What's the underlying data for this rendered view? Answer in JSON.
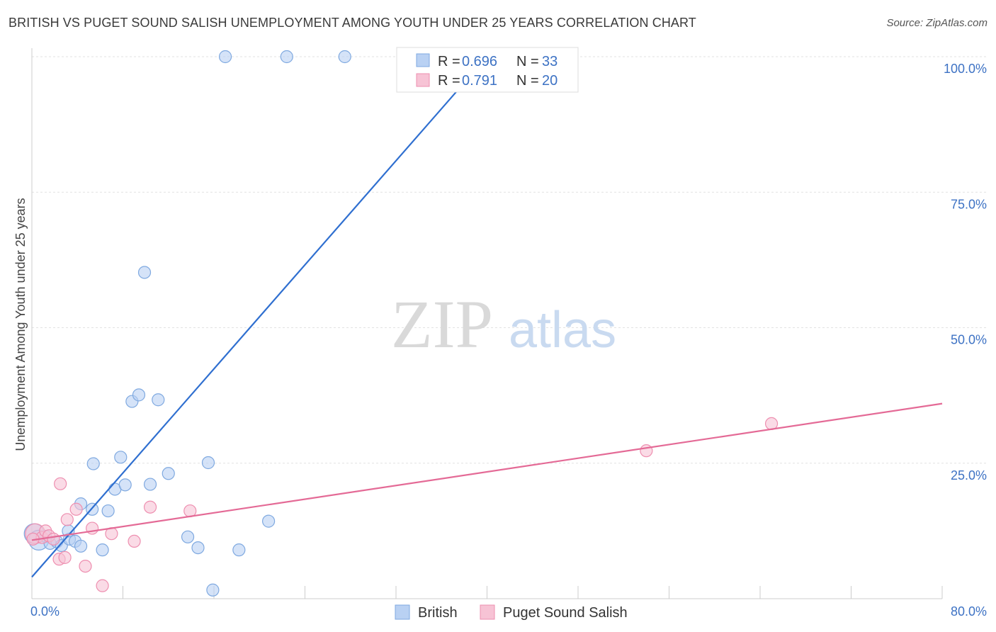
{
  "title": "BRITISH VS PUGET SOUND SALISH UNEMPLOYMENT AMONG YOUTH UNDER 25 YEARS CORRELATION CHART",
  "source": "Source: ZipAtlas.com",
  "watermark": {
    "zip": "ZIP",
    "atlas": "atlas"
  },
  "colors": {
    "british": "#7fa9e0",
    "british_fill": "#b9d1f3",
    "salish": "#ee8fb0",
    "salish_fill": "#f7c3d5",
    "british_line": "#2f6fd0",
    "salish_line": "#e46a96",
    "grid": "#e2e2e2"
  },
  "legend": {
    "rows": [
      {
        "r_label": "R =",
        "r_value": "0.696",
        "n_label": "N =",
        "n_value": "33"
      },
      {
        "r_label": "R =",
        "r_value": "0.791",
        "n_label": "N =",
        "n_value": "20"
      }
    ]
  },
  "chart_data": {
    "type": "scatter",
    "title": "BRITISH VS PUGET SOUND SALISH UNEMPLOYMENT AMONG YOUTH UNDER 25 YEARS CORRELATION CHART",
    "xlabel": "",
    "ylabel": "Unemployment Among Youth under 25 years",
    "xlim": [
      0,
      80
    ],
    "ylim": [
      0,
      100
    ],
    "x_tick_labels": [
      "0.0%",
      "80.0%"
    ],
    "y_tick_values": [
      25,
      50,
      75,
      100
    ],
    "y_tick_labels": [
      "25.0%",
      "50.0%",
      "75.0%",
      "100.0%"
    ],
    "grid": true,
    "legend_position": "bottom-center",
    "series": [
      {
        "name": "British",
        "points": [
          {
            "x": 0.2,
            "y": 12.0,
            "s": "large"
          },
          {
            "x": 0.6,
            "y": 10.8,
            "s": "large"
          },
          {
            "x": 1.2,
            "y": 11.5
          },
          {
            "x": 1.6,
            "y": 10.2
          },
          {
            "x": 2.2,
            "y": 10.5
          },
          {
            "x": 2.6,
            "y": 9.8
          },
          {
            "x": 3.3,
            "y": 11.0
          },
          {
            "x": 3.2,
            "y": 12.5
          },
          {
            "x": 4.3,
            "y": 17.5
          },
          {
            "x": 3.8,
            "y": 10.6
          },
          {
            "x": 4.3,
            "y": 9.7
          },
          {
            "x": 5.3,
            "y": 16.5
          },
          {
            "x": 5.4,
            "y": 24.9
          },
          {
            "x": 6.2,
            "y": 9.0
          },
          {
            "x": 6.7,
            "y": 16.2
          },
          {
            "x": 7.3,
            "y": 20.2
          },
          {
            "x": 7.8,
            "y": 26.1
          },
          {
            "x": 8.2,
            "y": 21.0
          },
          {
            "x": 8.8,
            "y": 36.4
          },
          {
            "x": 9.4,
            "y": 37.6
          },
          {
            "x": 9.9,
            "y": 60.2
          },
          {
            "x": 10.4,
            "y": 21.1
          },
          {
            "x": 11.1,
            "y": 36.7
          },
          {
            "x": 12.0,
            "y": 23.1
          },
          {
            "x": 13.7,
            "y": 11.4
          },
          {
            "x": 14.6,
            "y": 9.4
          },
          {
            "x": 15.5,
            "y": 25.1
          },
          {
            "x": 15.9,
            "y": 1.6
          },
          {
            "x": 17.0,
            "y": 100.0
          },
          {
            "x": 18.2,
            "y": 9.0
          },
          {
            "x": 20.8,
            "y": 14.3
          },
          {
            "x": 22.4,
            "y": 100.0
          },
          {
            "x": 27.5,
            "y": 100.0
          }
        ]
      },
      {
        "name": "Puget Sound Salish",
        "points": [
          {
            "x": 0.3,
            "y": 12.0,
            "s": "large"
          },
          {
            "x": 0.9,
            "y": 11.3
          },
          {
            "x": 1.2,
            "y": 12.5
          },
          {
            "x": 1.5,
            "y": 11.6
          },
          {
            "x": 1.9,
            "y": 11.0
          },
          {
            "x": 2.4,
            "y": 7.3
          },
          {
            "x": 2.5,
            "y": 21.2
          },
          {
            "x": 2.9,
            "y": 7.6
          },
          {
            "x": 3.1,
            "y": 14.6
          },
          {
            "x": 3.9,
            "y": 16.5
          },
          {
            "x": 4.7,
            "y": 6.0
          },
          {
            "x": 5.3,
            "y": 13.0
          },
          {
            "x": 6.2,
            "y": 2.4
          },
          {
            "x": 7.0,
            "y": 12.0
          },
          {
            "x": 9.0,
            "y": 10.6
          },
          {
            "x": 10.4,
            "y": 16.9
          },
          {
            "x": 13.9,
            "y": 16.2
          },
          {
            "x": 54.0,
            "y": 27.3
          },
          {
            "x": 65.0,
            "y": 32.3
          },
          {
            "x": 0.1,
            "y": 11.0
          }
        ]
      }
    ],
    "trend_lines": [
      {
        "name": "British",
        "from": {
          "x": 0,
          "y": 4.0
        },
        "to": {
          "x": 40,
          "y": 100.0
        }
      },
      {
        "name": "Puget Sound Salish",
        "from": {
          "x": 0,
          "y": 10.8
        },
        "to": {
          "x": 80,
          "y": 36.0
        }
      }
    ]
  }
}
